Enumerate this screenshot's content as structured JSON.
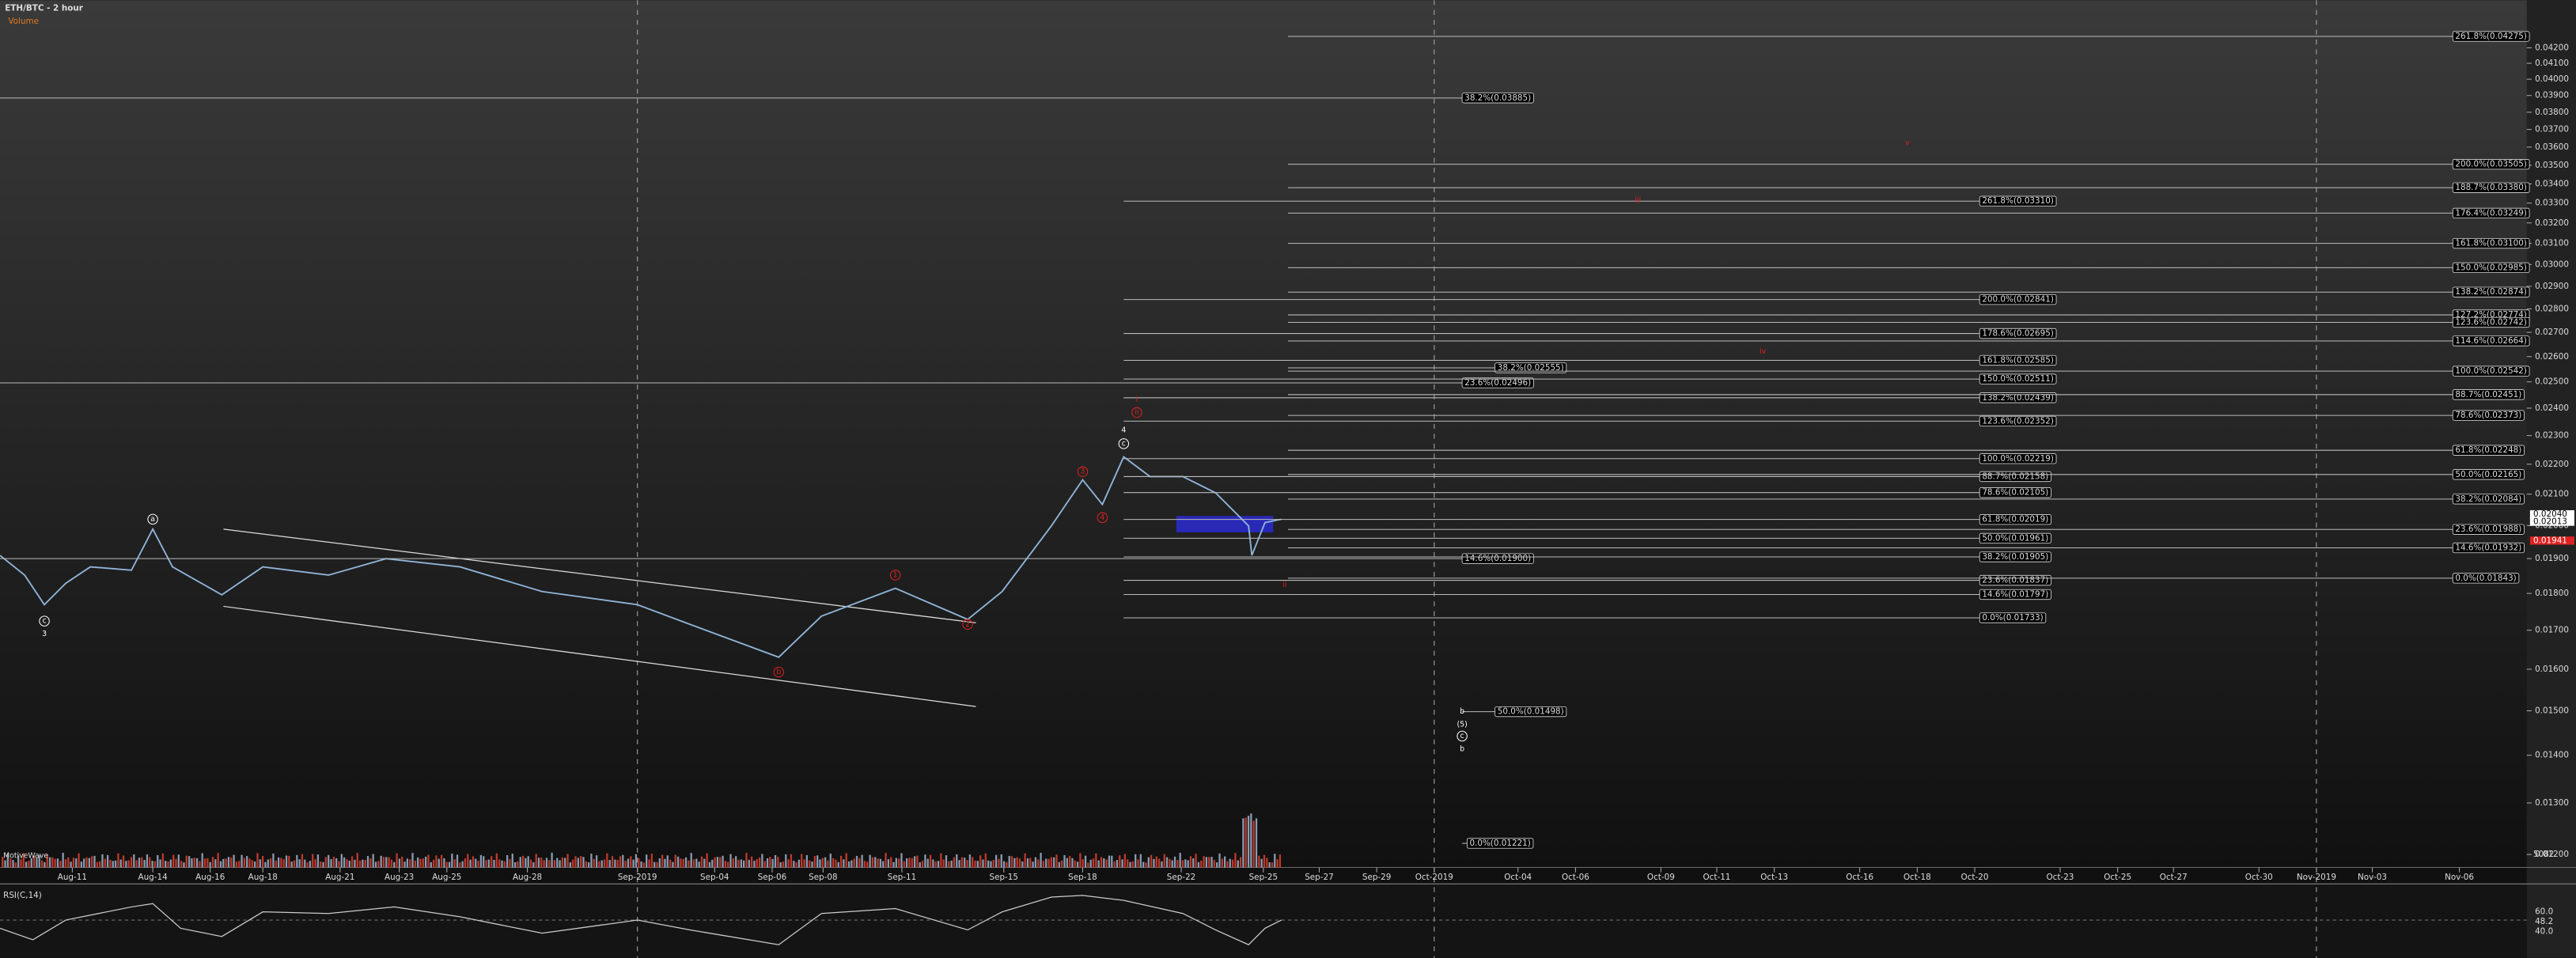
{
  "header": {
    "title": "ETH/BTC - 2 hour",
    "volume_label": "Volume",
    "brand": "MotiveWave"
  },
  "price_axis": [
    "0.04200",
    "0.04100",
    "0.04000",
    "0.03900",
    "0.03800",
    "0.03700",
    "0.03600",
    "0.03500",
    "0.03400",
    "0.03300",
    "0.03200",
    "0.03100",
    "0.03000",
    "0.02900",
    "0.02800",
    "0.02700",
    "0.02600",
    "0.02500",
    "0.02400",
    "0.02300",
    "0.02200",
    "0.02100",
    "0.02000",
    "0.01900",
    "0.01800",
    "0.01700",
    "0.01600",
    "0.01500",
    "0.01400",
    "0.01300",
    "0.01200"
  ],
  "price_tags": [
    "0.02040",
    "0.02013",
    "0.01941"
  ],
  "date_axis": [
    "Aug-11",
    "Aug-14",
    "Aug-16",
    "Aug-18",
    "Aug-21",
    "Aug-23",
    "Aug-25",
    "Aug-28",
    "Sep-2019",
    "Sep-04",
    "Sep-06",
    "Sep-08",
    "Sep-11",
    "Sep-15",
    "Sep-18",
    "Sep-22",
    "Sep-25",
    "Sep-27",
    "Sep-29",
    "Oct-2019",
    "Oct-04",
    "Oct-06",
    "Oct-09",
    "Oct-11",
    "Oct-13",
    "Oct-16",
    "Oct-18",
    "Oct-20",
    "Oct-23",
    "Oct-25",
    "Oct-27",
    "Oct-30",
    "Nov-2019",
    "Nov-03",
    "Nov-06"
  ],
  "fib_left": [
    "38.2%(0.03885)",
    "38.2%(0.02555)",
    "23.6%(0.02496)",
    "14.6%(0.01900)",
    "50.0%(0.01498)",
    "0.0%(0.01221)"
  ],
  "fib_middle": [
    "261.8%(0.03310)",
    "200.0%(0.02841)",
    "178.6%(0.02695)",
    "161.8%(0.02585)",
    "150.0%(0.02511)",
    "138.2%(0.02439)",
    "123.6%(0.02352)",
    "100.0%(0.02219)",
    "88.7%(0.02158)",
    "78.6%(0.02105)",
    "61.8%(0.02019)",
    "50.0%(0.01961)",
    "38.2%(0.01905)",
    "23.6%(0.01837)",
    "14.6%(0.01797)",
    "0.0%(0.01733)"
  ],
  "fib_right": [
    "261.8%(0.04275)",
    "200.0%(0.03505)",
    "188.7%(0.03380)",
    "176.4%(0.03249)",
    "161.8%(0.03100)",
    "150.0%(0.02985)",
    "138.2%(0.02874)",
    "127.2%(0.02774)",
    "123.6%(0.02742)",
    "114.6%(0.02664)",
    "100.0%(0.02542)",
    "88.7%(0.02451)",
    "78.6%(0.02373)",
    "61.8%(0.02248)",
    "50.0%(0.02165)",
    "38.2%(0.02084)",
    "23.6%(0.01988)",
    "14.6%(0.01932)",
    "0.0%(0.01843)"
  ],
  "wave_labels": [
    "c",
    "3",
    "a",
    "b",
    "1",
    "2",
    "3",
    "4",
    "4",
    "c",
    "i",
    "ii",
    "ii",
    "b",
    "(5)",
    "c",
    "b",
    "iii",
    "iv",
    "v"
  ],
  "rsi": {
    "label": "RSI(C,14)",
    "ticks": [
      "60.0",
      "48.2",
      "40.0"
    ]
  },
  "volume_axis": "5082"
}
